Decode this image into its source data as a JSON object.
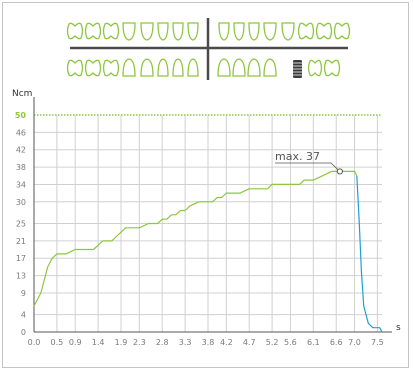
{
  "colors": {
    "tooth_outline": "#8dc63f",
    "axis_divider": "#4a4a4a",
    "selected_implant": "#3a3a3a",
    "grid": "#d0d0d0",
    "axis": "#555555",
    "tick_text": "#7a7a7a",
    "curve_green": "#8dc63f",
    "curve_blue": "#1e9fd8",
    "limit_line": "#8dc63f",
    "limit_label": "#8dc63f",
    "annotation": "#555555"
  },
  "tooth_chart": {
    "upper_left_count": 8,
    "upper_right_count": 8,
    "lower_left_count": 8,
    "lower_right_count": 8,
    "selected_icon": "dental-implant-icon"
  },
  "chart_data": {
    "type": "line",
    "ylabel": "Ncm",
    "xlabel": "s",
    "xlim": [
      0.0,
      7.6
    ],
    "ylim": [
      0,
      50
    ],
    "x_ticks": [
      "0.0",
      "0.5",
      "0.9",
      "1.4",
      "1.9",
      "2.3",
      "2.8",
      "3.3",
      "3.8",
      "4.2",
      "4.7",
      "5.2",
      "5.6",
      "6.1",
      "6.6",
      "7.0",
      "7.5"
    ],
    "y_ticks": [
      "0",
      "4",
      "9",
      "13",
      "17",
      "21",
      "25",
      "30",
      "34",
      "38",
      "42",
      "46",
      "50"
    ],
    "limit_line": {
      "value": 50,
      "label": "50"
    },
    "grid": true,
    "annotation": {
      "text": "max. 37",
      "x": 6.68,
      "y": 37
    },
    "series": [
      {
        "color": "#8dc63f",
        "x": [
          0.0,
          0.15,
          0.3,
          0.4,
          0.5,
          0.6,
          0.7,
          0.9,
          1.0,
          1.3,
          1.4,
          1.5,
          1.7,
          1.8,
          1.9,
          2.0,
          2.2,
          2.3,
          2.5,
          2.6,
          2.7,
          2.8,
          2.9,
          3.0,
          3.1,
          3.2,
          3.3,
          3.4,
          3.6,
          3.8,
          3.9,
          4.0,
          4.1,
          4.2,
          4.4,
          4.5,
          4.7,
          4.9,
          5.1,
          5.2,
          5.5,
          5.7,
          5.8,
          5.9,
          6.0,
          6.1,
          6.3,
          6.5,
          6.6,
          6.7,
          6.8,
          7.0,
          7.05
        ],
        "y": [
          6,
          9,
          15,
          17,
          18,
          18,
          18,
          19,
          19,
          19,
          20,
          21,
          21,
          22,
          23,
          24,
          24,
          24,
          25,
          25,
          25,
          26,
          26,
          27,
          27,
          28,
          28,
          29,
          30,
          30,
          30,
          31,
          31,
          32,
          32,
          32,
          33,
          33,
          33,
          34,
          34,
          34,
          34,
          35,
          35,
          35,
          36,
          37,
          37,
          37,
          37,
          37,
          36
        ]
      },
      {
        "color": "#1e9fd8",
        "x": [
          7.05,
          7.1,
          7.15,
          7.2,
          7.25,
          7.3,
          7.4,
          7.5,
          7.55,
          7.6
        ],
        "y": [
          36,
          26,
          14,
          6,
          4,
          2,
          1,
          1,
          1,
          0
        ]
      }
    ]
  }
}
